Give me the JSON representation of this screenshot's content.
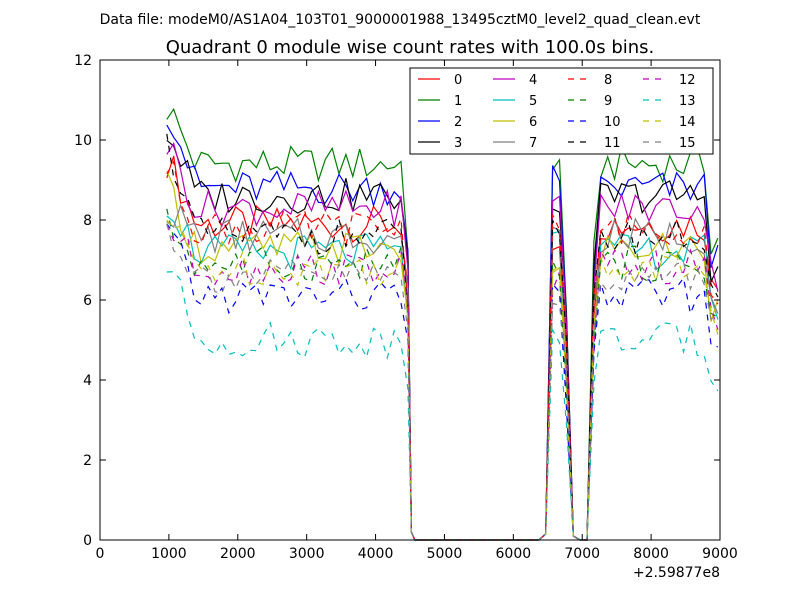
{
  "header": {
    "supertitle": "Data file: modeM0/AS1A04_103T01_9000001988_13495cztM0_level2_quad_clean.evt"
  },
  "chart_data": {
    "type": "line",
    "title": "Quadrant 0 module wise count rates with 100.0s bins.",
    "xlabel": "",
    "ylabel": "",
    "x_offset_label": "+2.59877e8",
    "xlim": [
      0,
      9000
    ],
    "ylim": [
      0,
      12
    ],
    "xticks": [
      0,
      1000,
      2000,
      3000,
      4000,
      5000,
      6000,
      7000,
      8000,
      9000
    ],
    "yticks": [
      0,
      2,
      4,
      6,
      8,
      10,
      12
    ],
    "grid": false,
    "legend_position": "top-right",
    "legend_columns": 4,
    "x": [
      970,
      1070,
      1170,
      1270,
      1370,
      1470,
      1570,
      1670,
      1770,
      1870,
      1970,
      2070,
      2170,
      2270,
      2370,
      2470,
      2570,
      2670,
      2770,
      2870,
      2970,
      3070,
      3170,
      3270,
      3370,
      3470,
      3570,
      3670,
      3770,
      3870,
      3970,
      4070,
      4170,
      4270,
      4370,
      4470,
      4520,
      4570,
      4670,
      4770,
      4870,
      4970,
      5070,
      5170,
      5270,
      5370,
      5470,
      5570,
      5670,
      5770,
      5870,
      5970,
      6070,
      6170,
      6270,
      6370,
      6470,
      6570,
      6670,
      6770,
      6870,
      6970,
      7070,
      7170,
      7270,
      7370,
      7470,
      7570,
      7670,
      7770,
      7870,
      7970,
      8070,
      8170,
      8270,
      8370,
      8470,
      8570,
      8670,
      8770,
      8870,
      8970
    ],
    "series": [
      {
        "name": "0",
        "color": "#ff0000",
        "style": "solid",
        "level": 7.9,
        "start": 9.5
      },
      {
        "name": "1",
        "color": "#008000",
        "style": "solid",
        "level": 9.4,
        "start": 10.8
      },
      {
        "name": "2",
        "color": "#0000ff",
        "style": "solid",
        "level": 8.8,
        "start": 10.8
      },
      {
        "name": "3",
        "color": "#000000",
        "style": "solid",
        "level": 8.6,
        "start": 10.2
      },
      {
        "name": "4",
        "color": "#bf00bf",
        "style": "solid",
        "level": 8.3,
        "start": 9.9
      },
      {
        "name": "5",
        "color": "#00bfbf",
        "style": "solid",
        "level": 7.2,
        "start": 8.5
      },
      {
        "name": "6",
        "color": "#bfbf00",
        "style": "solid",
        "level": 7.3,
        "start": 8.8
      },
      {
        "name": "7",
        "color": "#808080",
        "style": "solid",
        "level": 7.6,
        "start": 8.3
      },
      {
        "name": "8",
        "color": "#ff0000",
        "style": "dashed",
        "level": 7.8,
        "start": 9.3
      },
      {
        "name": "9",
        "color": "#008000",
        "style": "dashed",
        "level": 6.9,
        "start": 7.9
      },
      {
        "name": "10",
        "color": "#0000ff",
        "style": "dashed",
        "level": 6.1,
        "start": 7.7
      },
      {
        "name": "11",
        "color": "#000000",
        "style": "dashed",
        "level": 7.6,
        "start": 9.9
      },
      {
        "name": "12",
        "color": "#bf00bf",
        "style": "dashed",
        "level": 6.8,
        "start": 7.9
      },
      {
        "name": "13",
        "color": "#00bfbf",
        "style": "dashed",
        "level": 5.0,
        "start": 6.9
      },
      {
        "name": "14",
        "color": "#bfbf00",
        "style": "dashed",
        "level": 6.8,
        "start": 8.0
      },
      {
        "name": "15",
        "color": "#808080",
        "style": "dashed",
        "level": 6.6,
        "start": 7.8
      }
    ]
  }
}
